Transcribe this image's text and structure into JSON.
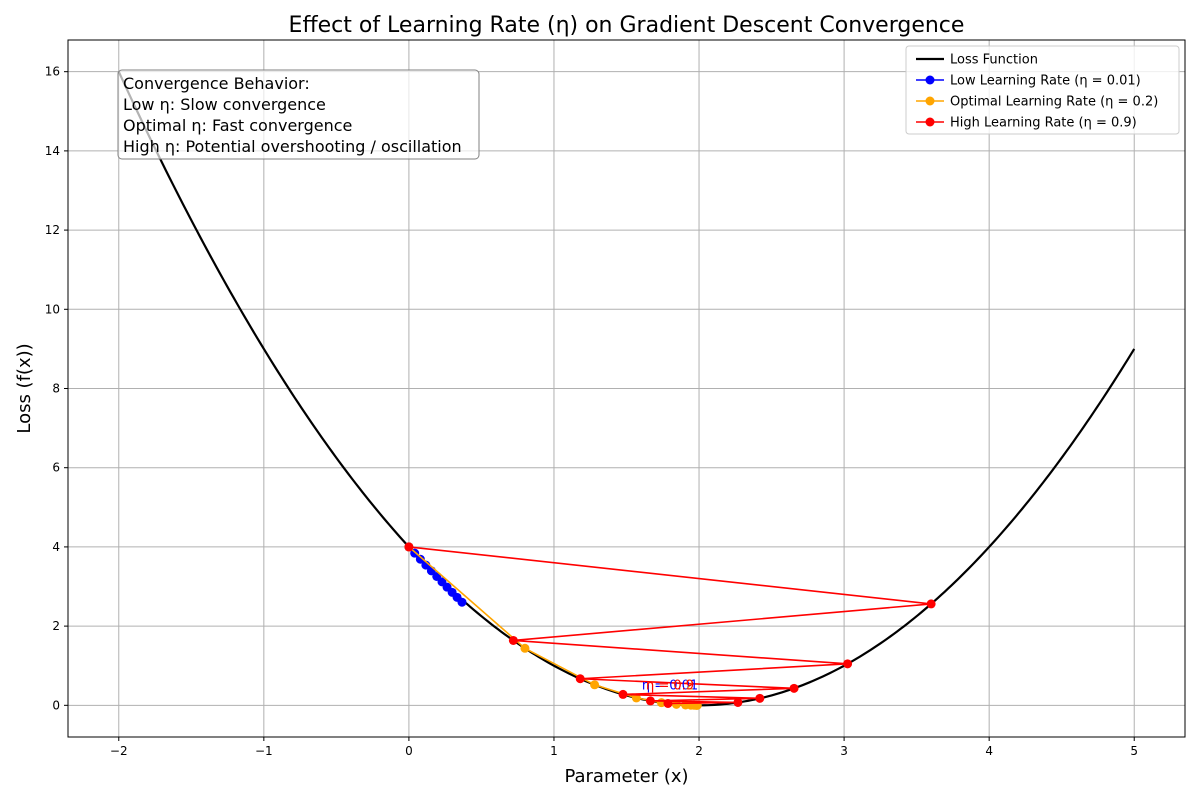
{
  "chart_data": {
    "type": "line",
    "title": "Effect of Learning Rate (η) on Gradient Descent Convergence",
    "xlabel": "Parameter (x)",
    "ylabel": "Loss (f(x))",
    "xlim": [
      -2.35,
      5.35
    ],
    "ylim": [
      -0.8,
      16.8
    ],
    "xticks": [
      -2,
      -1,
      0,
      1,
      2,
      3,
      4,
      5
    ],
    "yticks": [
      0,
      2,
      4,
      6,
      8,
      10,
      12,
      14,
      16
    ],
    "xtick_labels": [
      "−2",
      "−1",
      "0",
      "1",
      "2",
      "3",
      "4",
      "5"
    ],
    "ytick_labels": [
      "0",
      "2",
      "4",
      "6",
      "8",
      "10",
      "12",
      "14",
      "16"
    ],
    "grid": true,
    "legend_position": "top-right",
    "loss_function": {
      "name": "Loss Function",
      "color": "#000000",
      "x_range": [
        -2,
        5
      ],
      "minimum_x": 2
    },
    "series": [
      {
        "name": "Low Learning Rate (η = 0.01)",
        "color": "#0000ff",
        "x": [
          0.0,
          0.04,
          0.079,
          0.117,
          0.155,
          0.192,
          0.228,
          0.263,
          0.298,
          0.332,
          0.366
        ],
        "y": [
          4.0,
          3.842,
          3.689,
          3.54,
          3.395,
          3.254,
          3.117,
          2.983,
          2.853,
          2.727,
          2.604
        ]
      },
      {
        "name": "Optimal Learning Rate (η = 0.2)",
        "color": "#ffa500",
        "x": [
          0.0,
          0.8,
          1.28,
          1.568,
          1.741,
          1.844,
          1.907,
          1.944,
          1.966,
          1.98,
          1.988
        ],
        "y": [
          4.0,
          1.44,
          0.518,
          0.187,
          0.067,
          0.024,
          0.009,
          0.003,
          0.001,
          0.0,
          0.0
        ]
      },
      {
        "name": "High Learning Rate (η = 0.9)",
        "color": "#ff0000",
        "x": [
          0.0,
          3.6,
          0.72,
          3.024,
          1.181,
          2.655,
          1.476,
          2.419,
          1.665,
          2.268,
          1.786
        ],
        "y": [
          4.0,
          2.56,
          1.638,
          1.048,
          0.671,
          0.429,
          0.275,
          0.176,
          0.112,
          0.072,
          0.046
        ]
      }
    ],
    "annotations": [
      {
        "text": "η = 0.01",
        "x": 1.8,
        "y": 0.5,
        "color": "#0000ff"
      },
      {
        "text": "η = 0.2",
        "x": 1.8,
        "y": 0.5,
        "color": "#ffa500"
      },
      {
        "text": "η = 0.9",
        "x": 1.8,
        "y": 0.5,
        "color": "#ff0000"
      }
    ],
    "text_box": {
      "lines": [
        "Convergence Behavior:",
        "Low η: Slow convergence",
        "Optimal η: Fast convergence",
        "High η: Potential overshooting / oscillation"
      ]
    }
  }
}
